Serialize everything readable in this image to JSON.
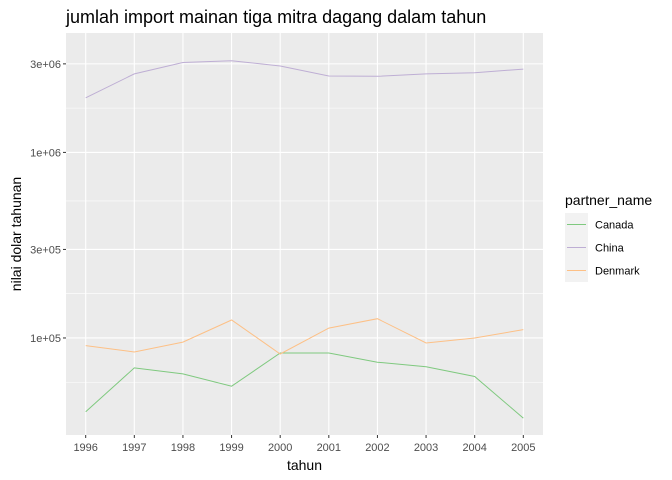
{
  "chart_data": {
    "type": "line",
    "title": "jumlah import mainan tiga mitra dagang dalam tahun",
    "xlabel": "tahun",
    "ylabel": "nilai dolar tahunan",
    "y_scale": "log10",
    "x": [
      1996,
      1997,
      1998,
      1999,
      2000,
      2001,
      2002,
      2003,
      2004,
      2005
    ],
    "x_tick_labels": [
      "1996",
      "1997",
      "1998",
      "1999",
      "2000",
      "2001",
      "2002",
      "2003",
      "2004",
      "2005"
    ],
    "ylim": [
      30000,
      4400000
    ],
    "y_ticks": [
      100000,
      300000,
      1000000,
      3000000
    ],
    "y_tick_labels": [
      "1e+05",
      "3e+05",
      "1e+06",
      "3e+06"
    ],
    "grid": true,
    "legend_position": "right",
    "legend_title": "partner_name",
    "series": [
      {
        "name": "Canada",
        "color": "#7FC97F",
        "values": [
          40000,
          69000,
          64000,
          55000,
          83000,
          83000,
          74000,
          70000,
          62000,
          37000
        ]
      },
      {
        "name": "China",
        "color": "#BEAED4",
        "values": [
          1970000,
          2650000,
          3050000,
          3120000,
          2920000,
          2580000,
          2570000,
          2650000,
          2690000,
          2810000
        ]
      },
      {
        "name": "Denmark",
        "color": "#FDC086",
        "values": [
          91000,
          84000,
          95000,
          125000,
          82000,
          113000,
          127000,
          94000,
          100000,
          111000
        ]
      }
    ]
  }
}
